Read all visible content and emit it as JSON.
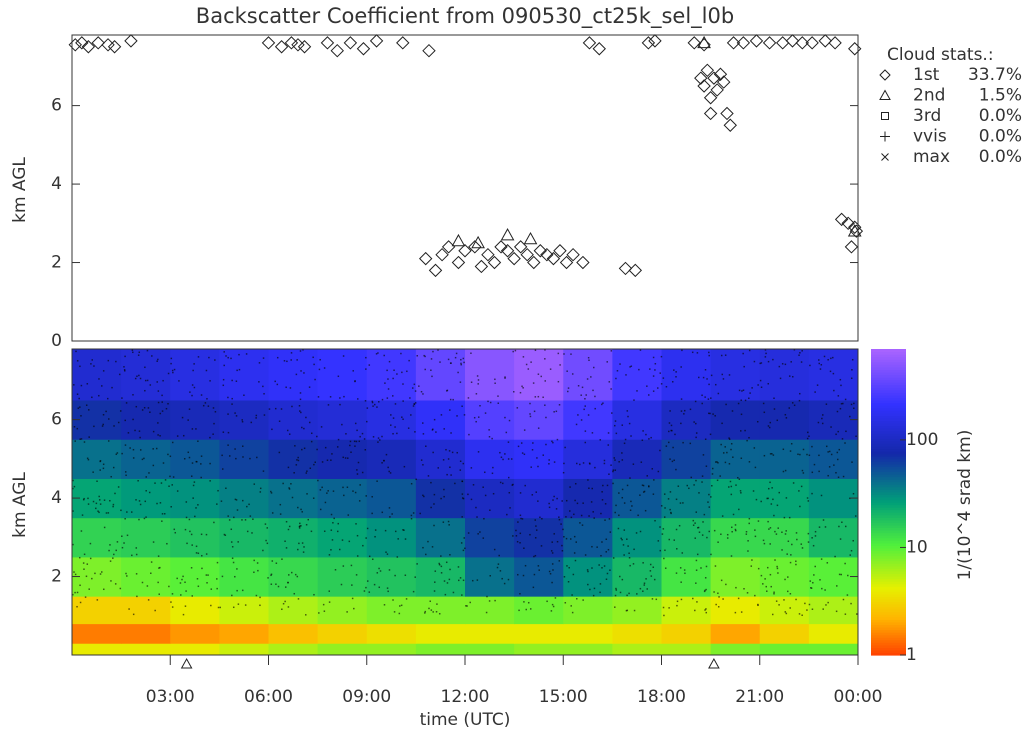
{
  "chart_data": [
    {
      "type": "scatter",
      "title": "Backscatter Coefficient from 090530_ct25k_sel_l0b",
      "ylabel": "km AGL",
      "xlim": [
        0,
        24
      ],
      "ylim": [
        0,
        7.8
      ],
      "yticks": [
        0,
        2,
        4,
        6
      ],
      "legend_title": "Cloud stats.:",
      "series": [
        {
          "name": "1st",
          "marker": "diamond",
          "share": 33.7,
          "share_label": "33.7%",
          "x": [
            0.1,
            0.3,
            0.5,
            0.8,
            1.1,
            1.3,
            1.8,
            6.0,
            6.4,
            6.7,
            6.9,
            7.1,
            7.8,
            8.1,
            8.5,
            8.9,
            9.3,
            10.1,
            10.9,
            15.8,
            16.1,
            17.6,
            17.8,
            19.0,
            19.3,
            20.2,
            20.5,
            20.9,
            21.3,
            21.7,
            22.0,
            22.3,
            22.6,
            23.0,
            23.3,
            23.9,
            19.2,
            19.3,
            19.4,
            19.5,
            19.6,
            19.7,
            19.8,
            19.5,
            19.9,
            20.0,
            20.1,
            10.8,
            11.1,
            11.3,
            11.5,
            11.8,
            12.0,
            12.3,
            12.5,
            12.7,
            12.9,
            13.1,
            13.3,
            13.5,
            13.7,
            13.9,
            14.1,
            14.3,
            14.5,
            14.7,
            14.9,
            15.1,
            15.3,
            15.6,
            16.9,
            17.2,
            23.5,
            23.7,
            23.9,
            23.8,
            23.95
          ],
          "values": [
            7.55,
            7.6,
            7.5,
            7.6,
            7.55,
            7.5,
            7.65,
            7.6,
            7.5,
            7.6,
            7.55,
            7.5,
            7.6,
            7.4,
            7.6,
            7.45,
            7.65,
            7.6,
            7.4,
            7.6,
            7.45,
            7.6,
            7.65,
            7.6,
            7.55,
            7.6,
            7.6,
            7.65,
            7.6,
            7.6,
            7.65,
            7.6,
            7.6,
            7.65,
            7.6,
            7.45,
            6.7,
            6.5,
            6.9,
            6.2,
            6.7,
            6.4,
            6.8,
            5.8,
            6.6,
            5.8,
            5.5,
            2.1,
            1.8,
            2.2,
            2.4,
            2.0,
            2.3,
            2.4,
            1.9,
            2.2,
            2.0,
            2.4,
            2.3,
            2.1,
            2.4,
            2.2,
            2.0,
            2.3,
            2.2,
            2.1,
            2.3,
            2.0,
            2.2,
            2.0,
            1.85,
            1.8,
            3.1,
            3.0,
            2.9,
            2.4,
            2.8
          ]
        },
        {
          "name": "2nd",
          "marker": "triangle",
          "share": 1.5,
          "share_label": "1.5%",
          "x": [
            11.8,
            12.4,
            13.3,
            14.0,
            19.3,
            23.9
          ],
          "values": [
            2.55,
            2.5,
            2.7,
            2.6,
            7.6,
            2.8
          ]
        },
        {
          "name": "3rd",
          "marker": "square",
          "share": 0.0,
          "share_label": "0.0%",
          "x": [],
          "values": []
        },
        {
          "name": "vvis",
          "marker": "plus",
          "share": 0.0,
          "share_label": "0.0%",
          "x": [],
          "values": []
        },
        {
          "name": "max",
          "marker": "cross",
          "share": 0.0,
          "share_label": "0.0%",
          "x": [],
          "values": []
        }
      ]
    },
    {
      "type": "heatmap",
      "ylabel": "km AGL",
      "xlabel": "time (UTC)",
      "xlim": [
        0,
        24
      ],
      "ylim": [
        0,
        7.8
      ],
      "yticks": [
        2,
        4,
        6
      ],
      "xticks": [
        {
          "value": 3,
          "label": "03:00"
        },
        {
          "value": 6,
          "label": "06:00"
        },
        {
          "value": 9,
          "label": "09:00"
        },
        {
          "value": 12,
          "label": "12:00"
        },
        {
          "value": 15,
          "label": "15:00"
        },
        {
          "value": 18,
          "label": "18:00"
        },
        {
          "value": 21,
          "label": "21:00"
        },
        {
          "value": 24,
          "label": "00:00"
        }
      ],
      "flags_x": [
        3.5,
        19.6
      ],
      "xbins": [
        0,
        1.5,
        3,
        4.5,
        6,
        7.5,
        9,
        10.5,
        12,
        13.5,
        15,
        16.5,
        18,
        19.5,
        21,
        22.5,
        24
      ],
      "ybins": [
        0,
        0.3,
        0.8,
        1.5,
        2.5,
        3.5,
        4.5,
        5.5,
        6.5,
        7.8
      ],
      "z": [
        [
          4,
          4,
          4,
          5,
          6,
          7,
          7,
          8,
          8,
          7,
          7,
          6,
          6,
          8,
          9,
          9
        ],
        [
          1.5,
          1.5,
          1.8,
          2,
          2.5,
          3,
          3.5,
          4,
          4,
          4,
          4,
          3.5,
          3,
          2,
          3,
          4
        ],
        [
          3,
          3,
          4,
          5,
          6,
          7,
          8,
          8,
          8,
          9,
          8,
          7,
          5,
          4,
          5,
          6
        ],
        [
          8,
          9,
          10,
          12,
          14,
          16,
          18,
          20,
          40,
          50,
          30,
          20,
          12,
          8,
          9,
          10
        ],
        [
          15,
          16,
          18,
          20,
          22,
          25,
          30,
          40,
          60,
          70,
          50,
          30,
          20,
          14,
          14,
          20
        ],
        [
          25,
          28,
          30,
          35,
          40,
          45,
          50,
          70,
          100,
          120,
          80,
          50,
          35,
          25,
          25,
          30
        ],
        [
          40,
          45,
          50,
          60,
          70,
          80,
          90,
          120,
          180,
          200,
          140,
          90,
          60,
          45,
          45,
          50
        ],
        [
          70,
          80,
          90,
          100,
          120,
          130,
          150,
          200,
          300,
          350,
          250,
          150,
          100,
          80,
          80,
          90
        ],
        [
          120,
          130,
          150,
          180,
          200,
          220,
          250,
          350,
          500,
          600,
          400,
          250,
          180,
          150,
          140,
          150
        ]
      ],
      "zlim": [
        1,
        700
      ],
      "zticks": [
        1,
        10,
        100
      ],
      "log_color": true,
      "colorbar_label": "1/(10^4 srad km)"
    }
  ]
}
